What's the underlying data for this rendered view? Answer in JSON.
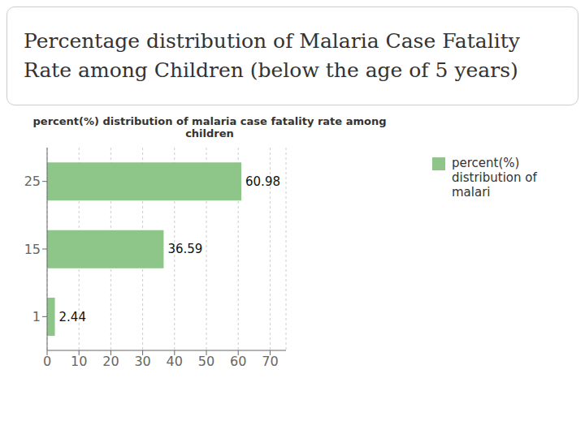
{
  "chart_data": {
    "type": "bar",
    "orientation": "horizontal",
    "title": "Percentage distribution of Malaria Case Fatality\nRate among Children (below the age of 5 years)",
    "subtitle": "percent(%) distribution of malaria case fatality rate among\nchildren",
    "categories": [
      "1",
      "15",
      "25"
    ],
    "series": [
      {
        "name": "percent(%)\ndistribution of\nmalari",
        "color": "#8ec68a",
        "values": [
          2.44,
          36.59,
          60.98
        ]
      }
    ],
    "xlim": [
      0,
      75
    ],
    "xticks": [
      0,
      10,
      20,
      30,
      40,
      50,
      60,
      70
    ],
    "grid": true,
    "legend": "upper right",
    "data_labels": true
  }
}
